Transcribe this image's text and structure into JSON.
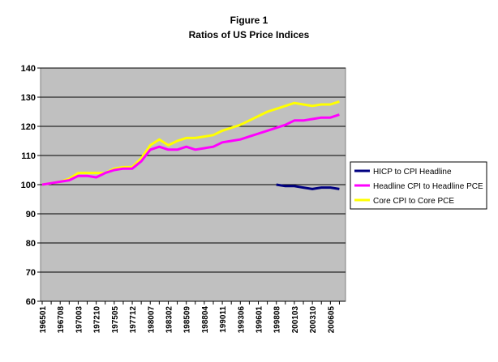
{
  "chart_data": {
    "type": "line",
    "title": "Figure 1",
    "subtitle": "Ratios of US Price Indices",
    "categories": [
      "196501",
      null,
      "196708",
      null,
      "197003",
      null,
      "197210",
      null,
      "197505",
      null,
      "197712",
      null,
      "198007",
      null,
      "198302",
      null,
      "198509",
      null,
      "198804",
      null,
      "199011",
      null,
      "199306",
      null,
      "199601",
      null,
      "199808",
      null,
      "200103",
      null,
      "200310",
      null,
      "200605",
      null
    ],
    "series": [
      {
        "name": "HICP to CPI Headline",
        "color": "#000080",
        "values": [
          null,
          null,
          null,
          null,
          null,
          null,
          null,
          null,
          null,
          null,
          null,
          null,
          null,
          null,
          null,
          null,
          null,
          null,
          null,
          null,
          null,
          null,
          null,
          null,
          null,
          null,
          100,
          99.5,
          99.5,
          99,
          98.5,
          99,
          99,
          98.5
        ]
      },
      {
        "name": "Headline CPI to Headline PCE",
        "color": "#ff00ff",
        "values": [
          100,
          100.5,
          101,
          101.5,
          103,
          103,
          102.5,
          104,
          105,
          105.5,
          105.5,
          108,
          112,
          113,
          112,
          112,
          113,
          112,
          112.5,
          113,
          114.5,
          115,
          115.5,
          116.5,
          117.5,
          118.5,
          119.5,
          120.5,
          122,
          122,
          122.5,
          123,
          123,
          124
        ]
      },
      {
        "name": "Core CPI to Core PCE",
        "color": "#ffff00",
        "values": [
          100,
          100.5,
          101,
          102,
          104,
          104,
          104,
          104,
          105.5,
          106,
          106,
          109,
          113.5,
          115.5,
          113.5,
          115,
          116,
          116,
          116.5,
          117,
          118.5,
          119.5,
          120.5,
          122,
          123.5,
          125,
          126,
          127,
          128,
          127.5,
          127,
          127.5,
          127.5,
          128.5
        ]
      }
    ],
    "ylim": [
      60,
      140
    ],
    "yticks": [
      60,
      70,
      80,
      90,
      100,
      110,
      120,
      130,
      140
    ],
    "grid": true,
    "legend": "right"
  }
}
